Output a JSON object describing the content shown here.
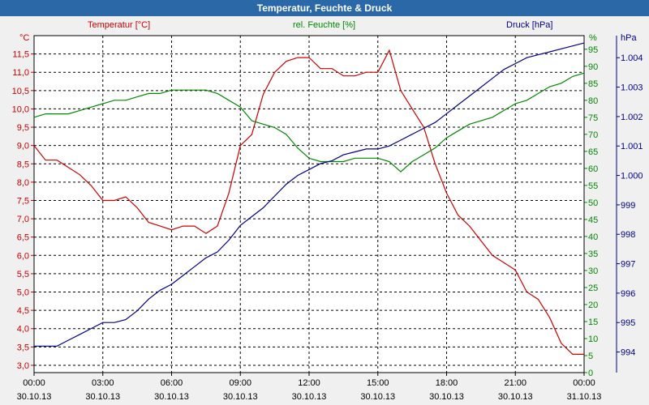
{
  "window": {
    "title": "Temperatur, Feuchte & Druck"
  },
  "legend": {
    "temperature": "Temperatur [°C]",
    "humidity": "rel. Feuchte [%]",
    "pressure": "Druck [hPa]"
  },
  "colors": {
    "temperature": "#cc0000",
    "humidity": "#008800",
    "pressure": "#00008b",
    "titlebar": "#2a68a8"
  },
  "chart_data": {
    "type": "line",
    "grid": true,
    "x_ticks": [
      {
        "time": "00:00",
        "date": "30.10.13"
      },
      {
        "time": "03:00",
        "date": "30.10.13"
      },
      {
        "time": "06:00",
        "date": "30.10.13"
      },
      {
        "time": "09:00",
        "date": "30.10.13"
      },
      {
        "time": "12:00",
        "date": "30.10.13"
      },
      {
        "time": "15:00",
        "date": "30.10.13"
      },
      {
        "time": "18:00",
        "date": "30.10.13"
      },
      {
        "time": "21:00",
        "date": "30.10.13"
      },
      {
        "time": "00:00",
        "date": "31.10.13"
      }
    ],
    "xlim": [
      0,
      24
    ],
    "axes": {
      "temperature": {
        "unit": "°C",
        "ylim": [
          2.8,
          12.0
        ],
        "ticks": [
          "3,0",
          "3,5",
          "4,0",
          "4,5",
          "5,0",
          "5,5",
          "6,0",
          "6,5",
          "7,0",
          "7,5",
          "8,0",
          "8,5",
          "9,0",
          "9,5",
          "10,0",
          "10,5",
          "11,0",
          "11,5"
        ]
      },
      "humidity": {
        "unit": "%",
        "ylim": [
          0,
          99
        ],
        "ticks": [
          "0",
          "5",
          "10",
          "15",
          "20",
          "25",
          "30",
          "35",
          "40",
          "45",
          "50",
          "55",
          "60",
          "65",
          "70",
          "75",
          "80",
          "85",
          "90",
          "95"
        ]
      },
      "pressure": {
        "unit": "hPa",
        "ylim": [
          993.3,
          1004.75
        ],
        "ticks": [
          "994",
          "995",
          "996",
          "997",
          "998",
          "999",
          "1.000",
          "1.001",
          "1.002",
          "1.003",
          "1.004"
        ]
      }
    },
    "series": [
      {
        "name": "Temperatur [°C]",
        "axis": "temperature",
        "x": [
          0,
          0.5,
          1,
          1.5,
          2,
          2.5,
          3,
          3.5,
          4,
          4.5,
          5,
          5.5,
          6,
          6.5,
          7,
          7.5,
          8,
          8.5,
          9,
          9.5,
          10,
          10.5,
          11,
          11.5,
          12,
          12.5,
          13,
          13.5,
          14,
          14.5,
          15,
          15.5,
          16,
          16.5,
          17,
          17.5,
          18,
          18.5,
          19,
          19.5,
          20,
          20.5,
          21,
          21.5,
          22,
          22.5,
          23,
          23.5,
          24
        ],
        "values": [
          9.0,
          8.6,
          8.6,
          8.4,
          8.2,
          7.9,
          7.5,
          7.5,
          7.6,
          7.3,
          6.9,
          6.8,
          6.7,
          6.8,
          6.8,
          6.6,
          6.8,
          7.7,
          9.0,
          9.3,
          10.4,
          11.0,
          11.3,
          11.4,
          11.4,
          11.1,
          11.1,
          10.9,
          10.9,
          11.0,
          11.0,
          11.6,
          10.5,
          10.0,
          9.5,
          8.5,
          7.7,
          7.1,
          6.8,
          6.4,
          6.0,
          5.8,
          5.6,
          5.0,
          4.8,
          4.3,
          3.6,
          3.3,
          3.3
        ]
      },
      {
        "name": "rel. Feuchte [%]",
        "axis": "humidity",
        "x": [
          0,
          0.5,
          1,
          1.5,
          2,
          2.5,
          3,
          3.5,
          4,
          4.5,
          5,
          5.5,
          6,
          6.5,
          7,
          7.5,
          8,
          8.5,
          9,
          9.5,
          10,
          10.5,
          11,
          11.5,
          12,
          12.5,
          13,
          13.5,
          14,
          14.5,
          15,
          15.5,
          16,
          16.5,
          17,
          17.5,
          18,
          18.5,
          19,
          19.5,
          20,
          20.5,
          21,
          21.5,
          22,
          22.5,
          23,
          23.5,
          24
        ],
        "values": [
          75,
          76,
          76,
          76,
          77,
          78,
          79,
          80,
          80,
          81,
          82,
          82,
          83,
          83,
          83,
          83,
          82,
          80,
          78,
          74,
          73,
          72,
          70,
          66,
          63,
          62,
          62,
          62,
          63,
          63,
          63,
          62,
          59,
          62,
          64,
          66,
          69,
          71,
          73,
          74,
          75,
          77,
          79,
          80,
          82,
          84,
          85,
          87,
          88
        ]
      },
      {
        "name": "Druck [hPa]",
        "axis": "pressure",
        "x": [
          0,
          0.5,
          1,
          1.5,
          2,
          2.5,
          3,
          3.5,
          4,
          4.5,
          5,
          5.5,
          6,
          6.5,
          7,
          7.5,
          8,
          8.5,
          9,
          9.5,
          10,
          10.5,
          11,
          11.5,
          12,
          12.5,
          13,
          13.5,
          14,
          14.5,
          15,
          15.5,
          16,
          16.5,
          17,
          17.5,
          18,
          18.5,
          19,
          19.5,
          20,
          20.5,
          21,
          21.5,
          22,
          22.5,
          23,
          23.5,
          24
        ],
        "values": [
          994.2,
          994.2,
          994.2,
          994.4,
          994.6,
          994.8,
          995.0,
          995.0,
          995.1,
          995.4,
          995.8,
          996.1,
          996.3,
          996.6,
          996.9,
          997.2,
          997.4,
          997.8,
          998.3,
          998.6,
          998.9,
          999.3,
          999.7,
          1000.0,
          1000.2,
          1000.4,
          1000.5,
          1000.7,
          1000.8,
          1000.9,
          1000.9,
          1001.0,
          1001.2,
          1001.4,
          1001.6,
          1001.8,
          1002.1,
          1002.4,
          1002.7,
          1003.0,
          1003.3,
          1003.6,
          1003.8,
          1004.0,
          1004.1,
          1004.2,
          1004.3,
          1004.4,
          1004.5
        ]
      }
    ]
  }
}
